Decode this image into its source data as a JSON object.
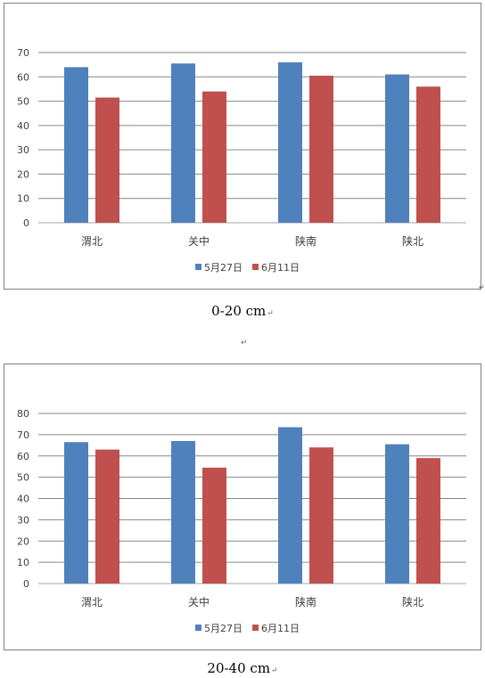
{
  "chart_data": [
    {
      "type": "bar",
      "categories": [
        "渭北",
        "关中",
        "陕南",
        "陕北"
      ],
      "series": [
        {
          "name": "5月27日",
          "values": [
            64,
            65.5,
            66,
            61
          ]
        },
        {
          "name": "6月11日",
          "values": [
            51.5,
            54,
            60.5,
            56
          ]
        }
      ],
      "yticks": [
        0,
        10,
        20,
        30,
        40,
        50,
        60,
        70
      ],
      "ylim": [
        0,
        70
      ],
      "grid": true,
      "legend": "bottom",
      "colors": [
        "#4f81bd",
        "#c0504d"
      ]
    },
    {
      "type": "bar",
      "categories": [
        "渭北",
        "关中",
        "陕南",
        "陕北"
      ],
      "series": [
        {
          "name": "5月27日",
          "values": [
            66.5,
            67,
            73.5,
            65.5
          ]
        },
        {
          "name": "6月11日",
          "values": [
            63,
            54.5,
            64,
            59
          ]
        }
      ],
      "yticks": [
        0,
        10,
        20,
        30,
        40,
        50,
        60,
        70,
        80
      ],
      "ylim": [
        0,
        80
      ],
      "grid": true,
      "legend": "bottom",
      "colors": [
        "#4f81bd",
        "#c0504d"
      ]
    }
  ],
  "captions": {
    "chart1": "0-20 cm",
    "chart2": "20-40 cm",
    "mark": "↵"
  }
}
